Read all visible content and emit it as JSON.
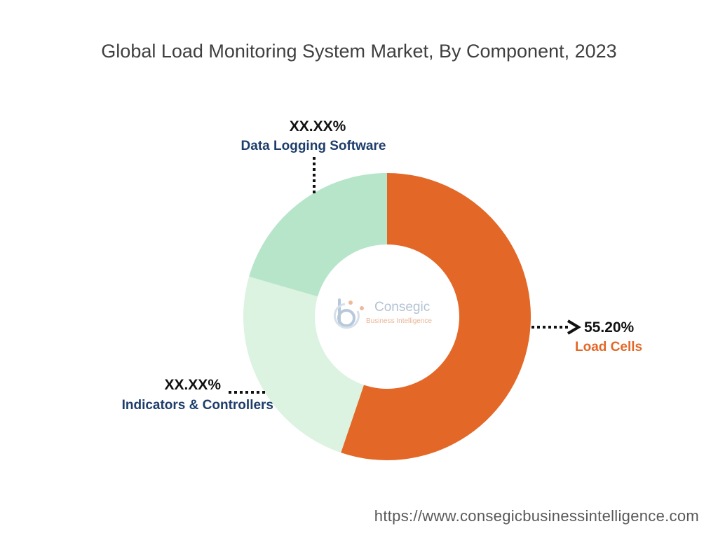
{
  "title": "Global Load Monitoring System Market, By Component, 2023",
  "footer_url": "https://www.consegicbusinessintelligence.com",
  "logo": {
    "brand": "Consegic",
    "tagline": "Business Intelligence"
  },
  "colors": {
    "load_cells": "#e36827",
    "indicators_controllers": "#dbf3e0",
    "data_logging_software": "#b6e5c9",
    "label_blue": "#1d3d6b",
    "label_orange": "#e36827"
  },
  "chart_data": {
    "type": "pie",
    "style": "donut",
    "title": "Global Load Monitoring System Market, By Component, 2023",
    "series": [
      {
        "name": "Load Cells",
        "value": 55.2,
        "value_label": "55.20%"
      },
      {
        "name": "Indicators & Controllers",
        "value": 24.3,
        "value_label": "XX.XX%"
      },
      {
        "name": "Data Logging Software",
        "value": 20.5,
        "value_label": "XX.XX%"
      }
    ]
  }
}
